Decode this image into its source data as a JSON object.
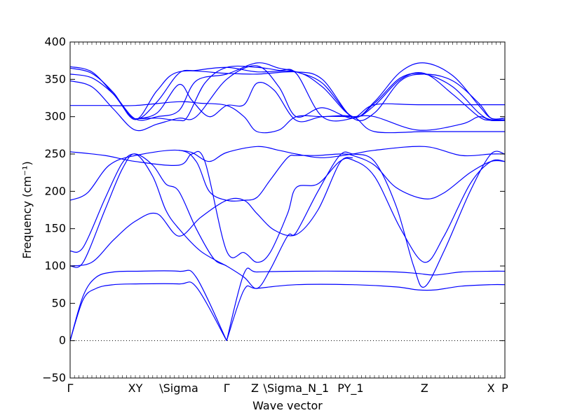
{
  "chart_data": {
    "type": "line",
    "title": "",
    "xlabel": "Wave vector",
    "ylabel": "Frequency (cm⁻¹)",
    "xlim": [
      0,
      1
    ],
    "ylim": [
      -50,
      400
    ],
    "yticks": [
      -50,
      0,
      50,
      100,
      150,
      200,
      250,
      300,
      350,
      400
    ],
    "xticks": [
      {
        "label": "Γ",
        "x": 0.0
      },
      {
        "label": "XY",
        "x": 0.15
      },
      {
        "label": "\\Sigma",
        "x": 0.25
      },
      {
        "label": "Γ",
        "x": 0.36
      },
      {
        "label": "Z",
        "x": 0.425
      },
      {
        "label": "\\Sigma_N_1",
        "x": 0.52
      },
      {
        "label": "PY_1",
        "x": 0.645
      },
      {
        "label": "Z",
        "x": 0.815
      },
      {
        "label": "X",
        "x": 0.968
      },
      {
        "label": "P",
        "x": 1.0
      }
    ],
    "zero_line": 0,
    "line_color": "#0000ff",
    "series": [
      {
        "points": [
          [
            0,
            0
          ],
          [
            0.03,
            55
          ],
          [
            0.06,
            70
          ],
          [
            0.1,
            75
          ],
          [
            0.15,
            76
          ],
          [
            0.25,
            76
          ],
          [
            0.29,
            72
          ],
          [
            0.36,
            0
          ]
        ]
      },
      {
        "points": [
          [
            0,
            0
          ],
          [
            0.03,
            60
          ],
          [
            0.06,
            85
          ],
          [
            0.1,
            92
          ],
          [
            0.15,
            93
          ],
          [
            0.25,
            93
          ],
          [
            0.29,
            85
          ],
          [
            0.36,
            0
          ]
        ]
      },
      {
        "points": [
          [
            0.36,
            0
          ],
          [
            0.4,
            68
          ],
          [
            0.43,
            70
          ],
          [
            0.52,
            75
          ],
          [
            0.65,
            75
          ],
          [
            0.75,
            72
          ],
          [
            0.8,
            68
          ],
          [
            0.84,
            68
          ],
          [
            0.9,
            73
          ],
          [
            0.968,
            75
          ],
          [
            1,
            75
          ]
        ]
      },
      {
        "points": [
          [
            0.36,
            0
          ],
          [
            0.4,
            90
          ],
          [
            0.43,
            92
          ],
          [
            0.52,
            93
          ],
          [
            0.65,
            93
          ],
          [
            0.75,
            92
          ],
          [
            0.8,
            90
          ],
          [
            0.84,
            88
          ],
          [
            0.9,
            92
          ],
          [
            0.968,
            93
          ],
          [
            1,
            93
          ]
        ]
      },
      {
        "points": [
          [
            0,
            100
          ],
          [
            0.03,
            105
          ],
          [
            0.08,
            175
          ],
          [
            0.12,
            230
          ],
          [
            0.15,
            250
          ],
          [
            0.19,
            220
          ],
          [
            0.22,
            175
          ],
          [
            0.25,
            150
          ],
          [
            0.3,
            120
          ],
          [
            0.36,
            100
          ]
        ]
      },
      {
        "points": [
          [
            0,
            120
          ],
          [
            0.03,
            125
          ],
          [
            0.08,
            190
          ],
          [
            0.12,
            238
          ],
          [
            0.15,
            250
          ],
          [
            0.19,
            235
          ],
          [
            0.22,
            210
          ],
          [
            0.25,
            200
          ],
          [
            0.29,
            150
          ],
          [
            0.33,
            110
          ],
          [
            0.36,
            100
          ],
          [
            0.4,
            85
          ],
          [
            0.43,
            70
          ],
          [
            0.46,
            95
          ],
          [
            0.5,
            140
          ],
          [
            0.52,
            145
          ],
          [
            0.57,
            200
          ],
          [
            0.62,
            248
          ],
          [
            0.65,
            250
          ],
          [
            0.7,
            240
          ],
          [
            0.75,
            180
          ],
          [
            0.79,
            100
          ],
          [
            0.815,
            72
          ],
          [
            0.86,
            120
          ],
          [
            0.92,
            200
          ],
          [
            0.968,
            250
          ],
          [
            1,
            250
          ]
        ]
      },
      {
        "points": [
          [
            0,
            188
          ],
          [
            0.04,
            198
          ],
          [
            0.09,
            235
          ],
          [
            0.15,
            248
          ],
          [
            0.25,
            255
          ],
          [
            0.29,
            240
          ],
          [
            0.32,
            200
          ],
          [
            0.36,
            188
          ],
          [
            0.4,
            188
          ],
          [
            0.43,
            192
          ],
          [
            0.46,
            215
          ],
          [
            0.5,
            245
          ],
          [
            0.52,
            248
          ],
          [
            0.57,
            248
          ],
          [
            0.62,
            250
          ],
          [
            0.65,
            248
          ],
          [
            0.7,
            235
          ],
          [
            0.75,
            205
          ],
          [
            0.815,
            190
          ],
          [
            0.86,
            198
          ],
          [
            0.92,
            225
          ],
          [
            0.968,
            240
          ],
          [
            1,
            240
          ]
        ]
      },
      {
        "points": [
          [
            0,
            253
          ],
          [
            0.08,
            248
          ],
          [
            0.15,
            240
          ],
          [
            0.25,
            235
          ],
          [
            0.28,
            250
          ],
          [
            0.31,
            240
          ],
          [
            0.36,
            120
          ],
          [
            0.4,
            118
          ],
          [
            0.43,
            105
          ],
          [
            0.46,
            118
          ],
          [
            0.5,
            170
          ],
          [
            0.52,
            205
          ],
          [
            0.57,
            210
          ],
          [
            0.62,
            240
          ],
          [
            0.65,
            242
          ],
          [
            0.7,
            220
          ],
          [
            0.76,
            150
          ],
          [
            0.815,
            105
          ],
          [
            0.86,
            140
          ],
          [
            0.92,
            210
          ],
          [
            0.968,
            240
          ],
          [
            1,
            240
          ]
        ]
      },
      {
        "points": [
          [
            0,
            100
          ],
          [
            0.05,
            105
          ],
          [
            0.1,
            135
          ],
          [
            0.15,
            160
          ],
          [
            0.2,
            170
          ],
          [
            0.25,
            140
          ],
          [
            0.3,
            165
          ],
          [
            0.36,
            188
          ],
          [
            0.4,
            188
          ],
          [
            0.43,
            170
          ],
          [
            0.47,
            148
          ],
          [
            0.52,
            142
          ],
          [
            0.57,
            175
          ],
          [
            0.62,
            238
          ],
          [
            0.65,
            245
          ]
        ]
      },
      {
        "points": [
          [
            0.25,
            255
          ],
          [
            0.28,
            252
          ],
          [
            0.32,
            240
          ],
          [
            0.36,
            252
          ],
          [
            0.43,
            260
          ],
          [
            0.48,
            255
          ],
          [
            0.52,
            250
          ],
          [
            0.58,
            245
          ],
          [
            0.65,
            250
          ],
          [
            0.7,
            255
          ],
          [
            0.815,
            260
          ],
          [
            0.9,
            248
          ],
          [
            0.968,
            250
          ],
          [
            1,
            250
          ]
        ]
      },
      {
        "points": [
          [
            0,
            315
          ],
          [
            0.08,
            315
          ],
          [
            0.15,
            315
          ],
          [
            0.25,
            320
          ],
          [
            0.3,
            318
          ],
          [
            0.36,
            315
          ],
          [
            0.4,
            300
          ],
          [
            0.43,
            280
          ],
          [
            0.48,
            282
          ],
          [
            0.52,
            300
          ],
          [
            0.58,
            300
          ],
          [
            0.65,
            300
          ],
          [
            0.7,
            280
          ],
          [
            0.815,
            280
          ],
          [
            0.9,
            280
          ],
          [
            0.968,
            280
          ],
          [
            1,
            280
          ]
        ]
      },
      {
        "points": [
          [
            0,
            348
          ],
          [
            0.05,
            340
          ],
          [
            0.1,
            310
          ],
          [
            0.15,
            282
          ],
          [
            0.2,
            290
          ],
          [
            0.25,
            298
          ],
          [
            0.29,
            300
          ],
          [
            0.36,
            350
          ],
          [
            0.43,
            368
          ],
          [
            0.48,
            340
          ],
          [
            0.52,
            300
          ],
          [
            0.58,
            312
          ],
          [
            0.65,
            298
          ],
          [
            0.7,
            315
          ],
          [
            0.76,
            350
          ],
          [
            0.815,
            358
          ],
          [
            0.88,
            330
          ],
          [
            0.94,
            300
          ],
          [
            0.968,
            295
          ],
          [
            1,
            295
          ]
        ]
      },
      {
        "points": [
          [
            0,
            357
          ],
          [
            0.05,
            352
          ],
          [
            0.1,
            330
          ],
          [
            0.15,
            297
          ],
          [
            0.2,
            300
          ],
          [
            0.25,
            308
          ],
          [
            0.29,
            348
          ],
          [
            0.36,
            357
          ],
          [
            0.43,
            372
          ],
          [
            0.48,
            365
          ],
          [
            0.52,
            360
          ],
          [
            0.58,
            345
          ],
          [
            0.65,
            300
          ],
          [
            0.7,
            320
          ],
          [
            0.76,
            360
          ],
          [
            0.815,
            372
          ],
          [
            0.88,
            355
          ],
          [
            0.94,
            315
          ],
          [
            0.968,
            298
          ],
          [
            1,
            298
          ]
        ]
      },
      {
        "points": [
          [
            0,
            367
          ],
          [
            0.05,
            360
          ],
          [
            0.1,
            330
          ],
          [
            0.15,
            297
          ],
          [
            0.2,
            320
          ],
          [
            0.25,
            358
          ],
          [
            0.29,
            362
          ],
          [
            0.36,
            366
          ],
          [
            0.43,
            360
          ],
          [
            0.52,
            360
          ],
          [
            0.58,
            340
          ],
          [
            0.65,
            300
          ],
          [
            0.7,
            318
          ],
          [
            0.76,
            352
          ],
          [
            0.815,
            357
          ],
          [
            0.88,
            340
          ],
          [
            0.94,
            305
          ],
          [
            0.968,
            296
          ],
          [
            1,
            296
          ]
        ]
      },
      {
        "points": [
          [
            0,
            365
          ],
          [
            0.05,
            358
          ],
          [
            0.1,
            332
          ],
          [
            0.15,
            296
          ],
          [
            0.2,
            335
          ],
          [
            0.25,
            360
          ],
          [
            0.36,
            358
          ],
          [
            0.43,
            357
          ],
          [
            0.52,
            360
          ],
          [
            0.58,
            350
          ],
          [
            0.65,
            298
          ],
          [
            0.7,
            305
          ],
          [
            0.76,
            348
          ],
          [
            0.815,
            357
          ],
          [
            0.88,
            348
          ],
          [
            0.94,
            318
          ],
          [
            0.968,
            298
          ],
          [
            1,
            298
          ]
        ]
      },
      {
        "points": [
          [
            0.15,
            297
          ],
          [
            0.2,
            298
          ],
          [
            0.25,
            295
          ],
          [
            0.27,
            300
          ],
          [
            0.31,
            345
          ],
          [
            0.36,
            366
          ],
          [
            0.43,
            366
          ],
          [
            0.48,
            362
          ],
          [
            0.52,
            358
          ],
          [
            0.58,
            300
          ],
          [
            0.65,
            298
          ],
          [
            0.7,
            316
          ],
          [
            0.8,
            316
          ],
          [
            0.968,
            316
          ],
          [
            1,
            316
          ]
        ]
      },
      {
        "points": [
          [
            0.15,
            297
          ],
          [
            0.2,
            305
          ],
          [
            0.25,
            343
          ],
          [
            0.28,
            322
          ],
          [
            0.32,
            300
          ],
          [
            0.36,
            315
          ],
          [
            0.4,
            316
          ],
          [
            0.43,
            345
          ],
          [
            0.47,
            335
          ],
          [
            0.52,
            295
          ],
          [
            0.58,
            300
          ],
          [
            0.65,
            300
          ],
          [
            0.7,
            300
          ],
          [
            0.8,
            282
          ],
          [
            0.9,
            290
          ],
          [
            0.94,
            300
          ],
          [
            0.968,
            295
          ],
          [
            1,
            295
          ]
        ]
      }
    ]
  }
}
